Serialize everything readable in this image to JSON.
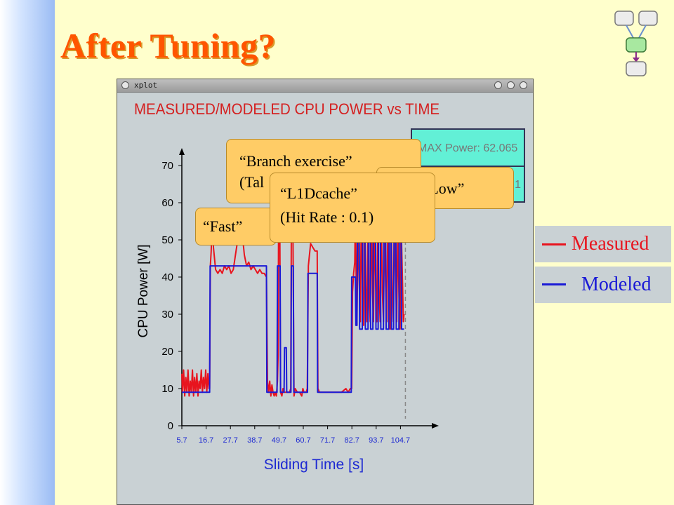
{
  "slide": {
    "title": "After Tuning?",
    "window_title": "xplot"
  },
  "chart_data": {
    "type": "line",
    "title": "MEASURED/MODELED CPU POWER vs TIME",
    "xlabel": "Sliding Time [s]",
    "ylabel": "CPU Power [W]",
    "xticks": [
      "5.7",
      "16.7",
      "27.7",
      "38.7",
      "49.7",
      "60.7",
      "71.7",
      "82.7",
      "93.7",
      "104.7"
    ],
    "ylim": [
      0,
      75
    ],
    "yticks": [
      0,
      10,
      20,
      30,
      40,
      50,
      60,
      70
    ],
    "series": [
      {
        "name": "Measured",
        "color": "#e8141e",
        "points": [
          [
            5.7,
            14
          ],
          [
            6,
            9
          ],
          [
            6.5,
            15
          ],
          [
            7,
            8
          ],
          [
            7.5,
            13
          ],
          [
            8,
            9
          ],
          [
            8.5,
            15
          ],
          [
            9,
            8
          ],
          [
            9.5,
            12
          ],
          [
            10,
            9
          ],
          [
            10.5,
            15
          ],
          [
            11,
            8
          ],
          [
            11.5,
            13
          ],
          [
            12,
            9
          ],
          [
            12.5,
            14
          ],
          [
            13,
            8
          ],
          [
            13.5,
            12
          ],
          [
            14,
            10
          ],
          [
            14.5,
            15
          ],
          [
            15,
            9
          ],
          [
            15.5,
            13
          ],
          [
            16,
            10
          ],
          [
            16.5,
            15
          ],
          [
            17,
            9
          ],
          [
            17.5,
            14
          ],
          [
            18,
            10
          ],
          [
            18.3,
            10
          ],
          [
            18.6,
            43
          ],
          [
            19,
            47
          ],
          [
            19.5,
            56
          ],
          [
            20,
            48
          ],
          [
            21,
            42
          ],
          [
            22,
            41
          ],
          [
            23,
            42
          ],
          [
            24,
            41
          ],
          [
            25,
            43
          ],
          [
            26,
            42
          ],
          [
            27,
            43
          ],
          [
            28,
            41
          ],
          [
            29,
            42
          ],
          [
            30,
            46
          ],
          [
            31,
            50
          ],
          [
            32,
            56
          ],
          [
            33,
            52
          ],
          [
            34,
            46
          ],
          [
            35,
            43
          ],
          [
            36,
            44
          ],
          [
            37,
            42
          ],
          [
            38,
            43
          ],
          [
            39,
            42
          ],
          [
            40,
            41
          ],
          [
            41,
            42
          ],
          [
            42,
            41
          ],
          [
            43,
            41
          ],
          [
            44,
            40
          ],
          [
            44.5,
            12
          ],
          [
            45,
            9
          ],
          [
            45.5,
            12
          ],
          [
            46,
            8
          ],
          [
            46.5,
            11
          ],
          [
            47,
            9
          ],
          [
            47.5,
            8
          ],
          [
            48,
            9
          ],
          [
            48.5,
            8
          ],
          [
            49,
            12
          ],
          [
            49.3,
            19
          ],
          [
            49.6,
            70
          ],
          [
            50,
            65
          ],
          [
            50.4,
            9
          ],
          [
            51,
            8
          ],
          [
            51.5,
            10
          ],
          [
            52,
            9
          ],
          [
            53,
            9
          ],
          [
            54,
            9
          ],
          [
            54.5,
            9
          ],
          [
            55,
            10
          ],
          [
            55.3,
            54
          ],
          [
            55.6,
            73
          ],
          [
            56,
            54
          ],
          [
            56.5,
            8
          ],
          [
            57,
            10
          ],
          [
            58,
            9
          ],
          [
            59,
            9
          ],
          [
            60,
            8
          ],
          [
            60.5,
            10
          ],
          [
            61,
            9
          ],
          [
            61.5,
            9
          ],
          [
            62,
            9
          ],
          [
            62.5,
            10
          ],
          [
            63,
            43
          ],
          [
            64,
            49
          ],
          [
            65,
            48
          ],
          [
            66,
            47
          ],
          [
            67,
            47
          ],
          [
            67.3,
            10
          ],
          [
            68,
            9
          ],
          [
            70,
            9
          ],
          [
            72,
            9
          ],
          [
            74,
            9
          ],
          [
            76,
            9
          ],
          [
            78,
            9
          ],
          [
            80,
            10
          ],
          [
            81,
            9
          ],
          [
            82,
            10
          ],
          [
            82.6,
            10
          ],
          [
            83,
            36
          ],
          [
            83.5,
            41
          ],
          [
            84,
            44
          ],
          [
            84.3,
            60
          ],
          [
            84.6,
            41
          ],
          [
            85,
            27
          ],
          [
            85.5,
            55
          ],
          [
            86,
            39
          ],
          [
            86.5,
            28
          ],
          [
            87,
            59
          ],
          [
            87.5,
            36
          ],
          [
            88,
            27
          ],
          [
            88.5,
            60
          ],
          [
            89,
            37
          ],
          [
            89.5,
            28
          ],
          [
            90,
            58
          ],
          [
            90.5,
            36
          ],
          [
            91,
            28
          ],
          [
            91.5,
            58
          ],
          [
            92,
            36
          ],
          [
            92.5,
            28
          ],
          [
            93,
            55
          ],
          [
            93.5,
            38
          ],
          [
            94,
            28
          ],
          [
            94.5,
            58
          ],
          [
            95,
            36
          ],
          [
            95.5,
            28
          ],
          [
            96,
            58
          ],
          [
            96.5,
            36
          ],
          [
            97,
            28
          ],
          [
            97.5,
            55
          ],
          [
            98,
            38
          ],
          [
            98.5,
            28
          ],
          [
            99,
            56
          ],
          [
            99.5,
            36
          ],
          [
            100,
            26
          ],
          [
            100.5,
            58
          ],
          [
            101,
            36
          ],
          [
            101.5,
            28
          ],
          [
            102,
            55
          ],
          [
            102.5,
            40
          ],
          [
            103,
            28
          ],
          [
            103.5,
            54
          ],
          [
            104,
            36
          ],
          [
            104.5,
            26
          ],
          [
            105,
            55
          ],
          [
            105.5,
            42
          ],
          [
            106,
            28
          ],
          [
            106.3,
            30
          ]
        ]
      },
      {
        "name": "Modeled",
        "color": "#1a1ad6",
        "points": [
          [
            5.7,
            9
          ],
          [
            18.3,
            9
          ],
          [
            18.5,
            43
          ],
          [
            44,
            43
          ],
          [
            44.2,
            9
          ],
          [
            48.8,
            9
          ],
          [
            49,
            43
          ],
          [
            50.2,
            43
          ],
          [
            50.4,
            9
          ],
          [
            52,
            9
          ],
          [
            52.2,
            21
          ],
          [
            53,
            21
          ],
          [
            53.2,
            9
          ],
          [
            55.1,
            9
          ],
          [
            55.3,
            43
          ],
          [
            56.2,
            43
          ],
          [
            56.4,
            9
          ],
          [
            62.6,
            9
          ],
          [
            62.8,
            41
          ],
          [
            67,
            41
          ],
          [
            67.2,
            9
          ],
          [
            82.4,
            9
          ],
          [
            82.6,
            40
          ],
          [
            84.3,
            40
          ],
          [
            84.5,
            27
          ],
          [
            85,
            27
          ],
          [
            85.2,
            53
          ],
          [
            86,
            53
          ],
          [
            86.2,
            26
          ],
          [
            87.4,
            26
          ],
          [
            87.6,
            53
          ],
          [
            88.6,
            53
          ],
          [
            88.8,
            26
          ],
          [
            90,
            26
          ],
          [
            90.2,
            53
          ],
          [
            91,
            53
          ],
          [
            91.2,
            26
          ],
          [
            92.2,
            26
          ],
          [
            92.4,
            53
          ],
          [
            93.4,
            53
          ],
          [
            93.6,
            26
          ],
          [
            94.6,
            26
          ],
          [
            94.8,
            53
          ],
          [
            95.6,
            53
          ],
          [
            95.8,
            26
          ],
          [
            97,
            26
          ],
          [
            97.2,
            53
          ],
          [
            98,
            53
          ],
          [
            98.2,
            26
          ],
          [
            99.4,
            26
          ],
          [
            99.6,
            55
          ],
          [
            100.4,
            55
          ],
          [
            100.6,
            26
          ],
          [
            101.6,
            26
          ],
          [
            101.8,
            55
          ],
          [
            102.6,
            55
          ],
          [
            102.8,
            26
          ],
          [
            104,
            26
          ],
          [
            104.2,
            55
          ],
          [
            105,
            55
          ],
          [
            105.2,
            26
          ],
          [
            106.3,
            26
          ]
        ]
      }
    ]
  },
  "stats": {
    "max_power": "MAX Power: 62.065",
    "secondary": "1"
  },
  "callouts": {
    "branch": "“Branch exercise”\n(Tal",
    "l1dcache": "“L1Dcache”\n(Hit Rate : 0.1)",
    "high_low": "h-Low”",
    "fast": "“Fast”"
  },
  "legend": {
    "measured": "Measured",
    "modeled": "Modeled",
    "measured_color": "#e8141e",
    "modeled_color": "#1a1ad6"
  },
  "logo_icon": "flowchart-icon"
}
